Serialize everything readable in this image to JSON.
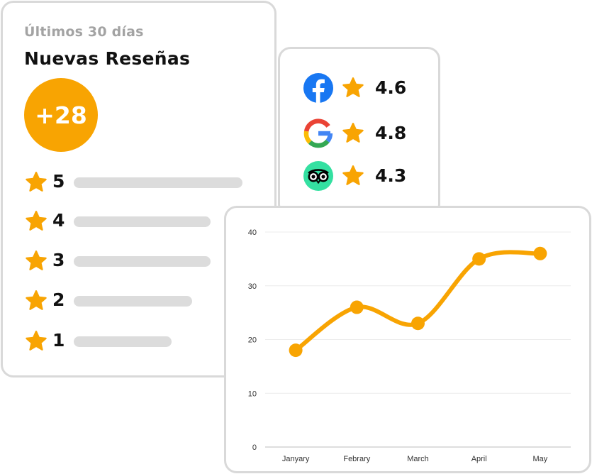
{
  "reviews": {
    "period": "Últimos 30 días",
    "title": "Nuevas Reseñas",
    "count_badge": "+28",
    "ratings": [
      {
        "stars": "5",
        "level": 1.0
      },
      {
        "stars": "4",
        "level": 0.81
      },
      {
        "stars": "3",
        "level": 0.81
      },
      {
        "stars": "2",
        "level": 0.7
      },
      {
        "stars": "1",
        "level": 0.58
      }
    ]
  },
  "platforms": [
    {
      "name": "facebook",
      "icon": "facebook-logo-icon",
      "rating": "4.6"
    },
    {
      "name": "google",
      "icon": "google-logo-icon",
      "rating": "4.8"
    },
    {
      "name": "tripadvisor",
      "icon": "tripadvisor-logo-icon",
      "rating": "4.3"
    }
  ],
  "colors": {
    "accent": "#f8a402",
    "bar": "#dcdcdc",
    "card_border": "#d9d9d9",
    "facebook": "#1877f2",
    "tripadvisor": "#34e0a1"
  },
  "chart_data": {
    "type": "line",
    "categories": [
      "Janyary",
      "Febrary",
      "March",
      "April",
      "May"
    ],
    "values": [
      18,
      26,
      23,
      35,
      36
    ],
    "title": "",
    "xlabel": "",
    "ylabel": "",
    "ylim": [
      0,
      40
    ],
    "yticks": [
      0,
      10,
      20,
      30,
      40
    ],
    "grid": true,
    "color": "#f8a402"
  }
}
